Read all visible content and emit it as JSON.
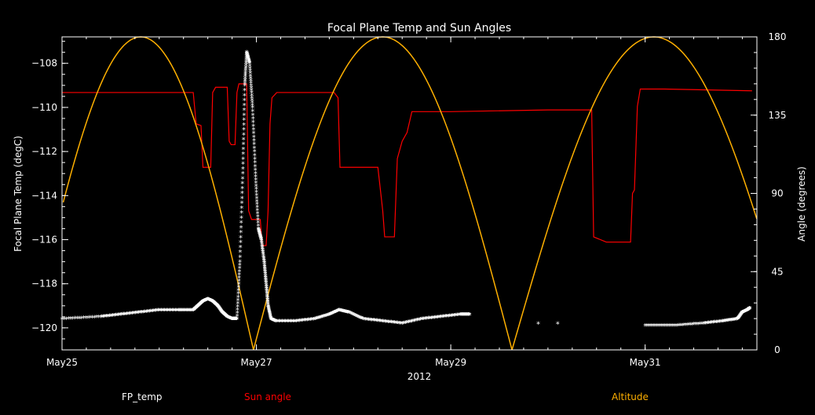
{
  "chart_data": {
    "type": "line",
    "title": "Focal Plane Temp and Sun Angles",
    "xlabel": "2012",
    "ylabel_left": "Focal Plane Temp (degC)",
    "ylabel_right": "Angle (degrees)",
    "x_unit": "days since May25 00:00",
    "xlim": [
      0,
      7.15
    ],
    "ylim_left": [
      -121.0,
      -106.8
    ],
    "ylim_right": [
      0,
      180
    ],
    "x_ticks": [
      {
        "value": 0,
        "label": "May25"
      },
      {
        "value": 2,
        "label": "May27"
      },
      {
        "value": 4,
        "label": "May29"
      },
      {
        "value": 6,
        "label": "May31"
      }
    ],
    "y_ticks_left": [
      {
        "value": -108,
        "label": "−108"
      },
      {
        "value": -110,
        "label": "−110"
      },
      {
        "value": -112,
        "label": "−112"
      },
      {
        "value": -114,
        "label": "−114"
      },
      {
        "value": -116,
        "label": "−116"
      },
      {
        "value": -118,
        "label": "−118"
      },
      {
        "value": -120,
        "label": "−120"
      }
    ],
    "y_ticks_right": [
      {
        "value": 180,
        "label": "180"
      },
      {
        "value": 135,
        "label": "135"
      },
      {
        "value": 90,
        "label": "90"
      },
      {
        "value": 45,
        "label": "45"
      },
      {
        "value": 0,
        "label": "0"
      }
    ],
    "legend": [
      {
        "name": "FP_temp",
        "color": "#ffffff"
      },
      {
        "name": "Sun angle",
        "color": "#ff0000"
      },
      {
        "name": "Altitude",
        "color": "#ffb000"
      }
    ],
    "series": [
      {
        "name": "Sun angle",
        "axis": "right",
        "color": "#ff0000",
        "points": [
          [
            0,
            148
          ],
          [
            1.3,
            148
          ],
          [
            1.35,
            148
          ],
          [
            1.38,
            130
          ],
          [
            1.43,
            129
          ],
          [
            1.45,
            105
          ],
          [
            1.53,
            105
          ],
          [
            1.55,
            148
          ],
          [
            1.58,
            151
          ],
          [
            1.7,
            151
          ],
          [
            1.72,
            120
          ],
          [
            1.74,
            118
          ],
          [
            1.78,
            118
          ],
          [
            1.8,
            148
          ],
          [
            1.82,
            153
          ],
          [
            1.9,
            153
          ],
          [
            1.92,
            80
          ],
          [
            1.95,
            75
          ],
          [
            2.04,
            75
          ],
          [
            2.06,
            60
          ],
          [
            2.1,
            60
          ],
          [
            2.12,
            80
          ],
          [
            2.14,
            130
          ],
          [
            2.16,
            145
          ],
          [
            2.21,
            148
          ],
          [
            2.3,
            148
          ],
          [
            2.4,
            148
          ],
          [
            2.8,
            148
          ],
          [
            2.84,
            145
          ],
          [
            2.86,
            105
          ],
          [
            3.25,
            105
          ],
          [
            3.28,
            90
          ],
          [
            3.3,
            80
          ],
          [
            3.32,
            65
          ],
          [
            3.42,
            65
          ],
          [
            3.45,
            110
          ],
          [
            3.5,
            120
          ],
          [
            3.55,
            125
          ],
          [
            3.6,
            137
          ],
          [
            4.0,
            137
          ],
          [
            5.0,
            138
          ],
          [
            5.45,
            138
          ],
          [
            5.47,
            65
          ],
          [
            5.6,
            62
          ],
          [
            5.85,
            62
          ],
          [
            5.87,
            90
          ],
          [
            5.89,
            92
          ],
          [
            5.92,
            140
          ],
          [
            5.95,
            150
          ],
          [
            6.2,
            150
          ],
          [
            7.1,
            149
          ]
        ]
      },
      {
        "name": "Altitude",
        "axis": "right",
        "color": "#ffb000",
        "arcs": [
          {
            "start": -0.35,
            "end": 1.97,
            "peak": 180
          },
          {
            "start": 1.97,
            "end": 4.63,
            "peak": 180
          },
          {
            "start": 4.63,
            "end": 7.55,
            "peak": 180
          }
        ]
      },
      {
        "name": "FP_temp",
        "axis": "left",
        "color": "#ffffff",
        "points": [
          [
            0,
            -119.6
          ],
          [
            0.4,
            -119.5
          ],
          [
            0.6,
            -119.4
          ],
          [
            0.8,
            -119.3
          ],
          [
            1.0,
            -119.2
          ],
          [
            1.2,
            -119.2
          ],
          [
            1.35,
            -119.2
          ],
          [
            1.4,
            -119.0
          ],
          [
            1.45,
            -118.8
          ],
          [
            1.5,
            -118.7
          ],
          [
            1.55,
            -118.8
          ],
          [
            1.6,
            -119.0
          ],
          [
            1.65,
            -119.3
          ],
          [
            1.7,
            -119.5
          ],
          [
            1.75,
            -119.6
          ],
          [
            1.8,
            -119.6
          ],
          [
            1.83,
            -117.0
          ],
          [
            1.86,
            -113.0
          ],
          [
            1.88,
            -109.0
          ],
          [
            1.9,
            -107.5
          ],
          [
            1.93,
            -108.0
          ],
          [
            1.96,
            -110.0
          ],
          [
            1.99,
            -113.0
          ],
          [
            2.02,
            -115.5
          ],
          [
            2.05,
            -116.0
          ],
          [
            2.08,
            -117.0
          ],
          [
            2.1,
            -118.0
          ],
          [
            2.12,
            -119.0
          ],
          [
            2.15,
            -119.6
          ],
          [
            2.2,
            -119.7
          ],
          [
            2.4,
            -119.7
          ],
          [
            2.6,
            -119.6
          ],
          [
            2.75,
            -119.4
          ],
          [
            2.85,
            -119.2
          ],
          [
            2.95,
            -119.3
          ],
          [
            3.1,
            -119.6
          ],
          [
            3.3,
            -119.7
          ],
          [
            3.5,
            -119.8
          ],
          [
            3.7,
            -119.6
          ],
          [
            3.9,
            -119.5
          ],
          [
            4.1,
            -119.4
          ],
          [
            4.2,
            -119.4
          ],
          [
            4.2,
            null
          ],
          [
            6.0,
            -119.9
          ],
          [
            6.3,
            -119.9
          ],
          [
            6.6,
            -119.8
          ],
          [
            6.8,
            -119.7
          ],
          [
            6.95,
            -119.6
          ],
          [
            7.0,
            -119.3
          ],
          [
            7.05,
            -119.2
          ],
          [
            7.08,
            -119.1
          ]
        ],
        "isolated_points": [
          [
            4.9,
            -119.8
          ],
          [
            5.1,
            -119.8
          ]
        ]
      }
    ]
  }
}
